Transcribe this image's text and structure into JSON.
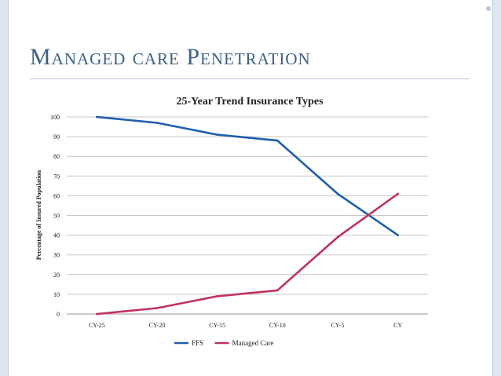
{
  "slide": {
    "title": "Managed care Penetration"
  },
  "chart_data": {
    "type": "line",
    "title": "25-Year Trend Insurance Types",
    "xlabel": "",
    "ylabel": "Percentage of Insured Population",
    "categories": [
      "CY-25",
      "CY-20",
      "CY-15",
      "CY-10",
      "CY-5",
      "CY"
    ],
    "ylim": [
      0,
      100
    ],
    "yticks": [
      0,
      10,
      20,
      30,
      40,
      50,
      60,
      70,
      80,
      90,
      100
    ],
    "grid": true,
    "legend": "bottom",
    "series": [
      {
        "name": "FFS",
        "color": "#1f5fac",
        "values": [
          100,
          97,
          91,
          88,
          61,
          40
        ]
      },
      {
        "name": "Managed Care",
        "color": "#c0335f",
        "values": [
          0,
          3,
          9,
          12,
          39,
          61
        ]
      }
    ]
  }
}
